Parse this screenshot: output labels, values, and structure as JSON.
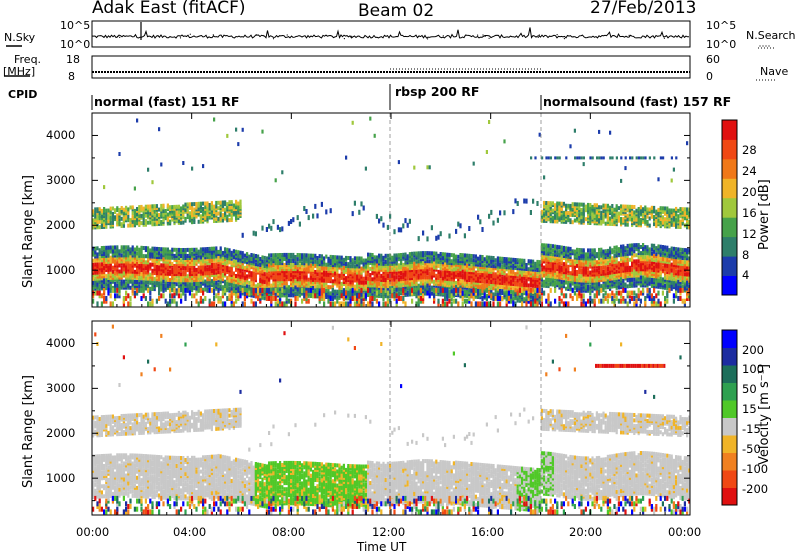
{
  "header": {
    "station": "Adak East (fitACF)",
    "beam": "Beam 02",
    "date": "27/Feb/2013"
  },
  "panels": {
    "nsky": {
      "label": "N.Sky",
      "ticks": [
        "10^5",
        "10^0"
      ],
      "right_label": "N.Search",
      "right_ticks": [
        "10^5",
        "10^0"
      ]
    },
    "freq": {
      "label_line1": "Freq.",
      "label_line2": "[MHz]",
      "ticks": [
        "18",
        "8"
      ],
      "right_label": "Nave",
      "right_ticks": [
        "60",
        "0"
      ]
    },
    "cpid": {
      "label": "CPID",
      "modes": [
        "normal (fast) 151 RF",
        "rbsp 200 RF",
        "normalsound (fast) 157 RF"
      ]
    }
  },
  "colors": {
    "power": [
      "#0000ff",
      "#1c3cab",
      "#2e7e6a",
      "#46a24a",
      "#a0c83c",
      "#f0b428",
      "#f07818",
      "#f04814",
      "#e01010"
    ],
    "velocity": [
      "#e01010",
      "#f04814",
      "#f08020",
      "#f0b428",
      "#c8c8c8",
      "#50c828",
      "#2ea050",
      "#1c6e5a",
      "#1c2ca0",
      "#0000ff"
    ]
  },
  "chart_data": [
    {
      "type": "heatmap",
      "title": "",
      "ylabel": "Slant Range [km]",
      "xlabel": "",
      "yticks": [
        "1000",
        "2000",
        "3000",
        "4000"
      ],
      "ylim": [
        180,
        4500
      ],
      "xlim": [
        0,
        24
      ],
      "colorbar": {
        "label": "Power [dB]",
        "ticks": [
          "4",
          "8",
          "12",
          "16",
          "20",
          "24",
          "28"
        ],
        "range": [
          0,
          32
        ]
      }
    },
    {
      "type": "heatmap",
      "title": "",
      "ylabel": "Slant Range [km]",
      "xlabel": "Time UT",
      "xticks": [
        "00:00",
        "04:00",
        "08:00",
        "12:00",
        "16:00",
        "20:00",
        "00:00"
      ],
      "yticks": [
        "1000",
        "2000",
        "3000",
        "4000"
      ],
      "ylim": [
        180,
        4500
      ],
      "xlim": [
        0,
        24
      ],
      "colorbar": {
        "label": "Velocity [m s⁻¹]",
        "ticks": [
          "200",
          "100",
          "50",
          "15",
          "-15",
          "-50",
          "-100",
          "-200"
        ],
        "range": [
          -250,
          250
        ]
      }
    }
  ]
}
